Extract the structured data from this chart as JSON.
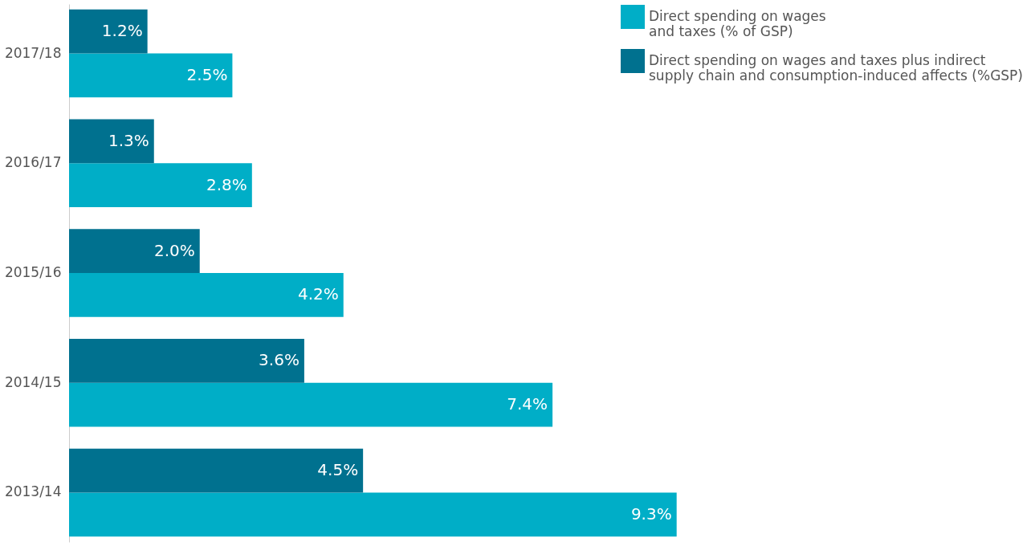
{
  "chart_data": {
    "type": "bar",
    "orientation": "horizontal",
    "categories": [
      "2017/18",
      "2016/17",
      "2015/16",
      "2014/15",
      "2013/14"
    ],
    "series": [
      {
        "name": "Direct spending on wages\nand taxes (% of GSP)",
        "color": "#00aec7",
        "values": [
          2.5,
          2.8,
          4.2,
          7.4,
          9.3
        ],
        "value_labels": [
          "2.5%",
          "2.8%",
          "4.2%",
          "7.4%",
          "9.3%"
        ]
      },
      {
        "name": "Direct spending on wages and taxes plus indirect\nsupply chain and consumption-induced affects (%GSP)",
        "color": "#00718f",
        "values": [
          1.2,
          1.3,
          2.0,
          3.6,
          4.5
        ],
        "value_labels": [
          "1.2%",
          "1.3%",
          "2.0%",
          "3.6%",
          "4.5%"
        ]
      }
    ],
    "legend": "top right",
    "grid": false
  }
}
